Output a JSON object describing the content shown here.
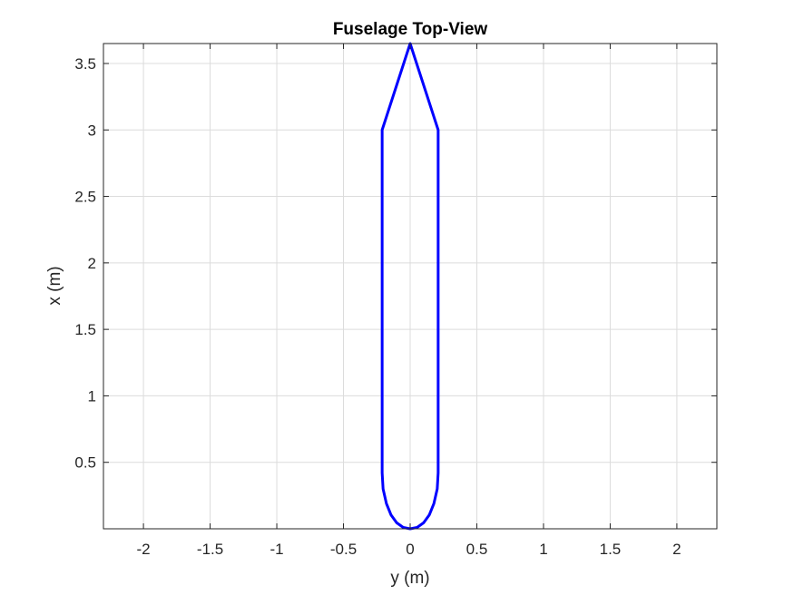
{
  "chart_data": {
    "type": "line",
    "title": "Fuselage Top-View",
    "xlabel": "y (m)",
    "ylabel": "x (m)",
    "xlim": [
      -2.3,
      2.3
    ],
    "ylim": [
      0,
      3.65
    ],
    "xticks": [
      -2,
      -1.5,
      -1,
      -0.5,
      0,
      0.5,
      1,
      1.5,
      2
    ],
    "xtick_labels": [
      "-2",
      "-1.5",
      "-1",
      "-0.5",
      "0",
      "0.5",
      "1",
      "1.5",
      "2"
    ],
    "yticks": [
      0.5,
      1,
      1.5,
      2,
      2.5,
      3,
      3.5
    ],
    "ytick_labels": [
      "0.5",
      "1",
      "1.5",
      "2",
      "2.5",
      "3",
      "3.5"
    ],
    "grid": true,
    "series": [
      {
        "color": "#0000ff",
        "x": [
          0,
          0.052,
          0.101,
          0.144,
          0.178,
          0.203,
          0.21,
          0.21,
          0.0,
          -0.21,
          -0.21,
          -0.203,
          -0.178,
          -0.144,
          -0.101,
          -0.052,
          0
        ],
        "y": [
          0,
          0.01,
          0.045,
          0.105,
          0.19,
          0.3,
          0.42,
          3.0,
          3.65,
          3.0,
          0.42,
          0.3,
          0.19,
          0.105,
          0.045,
          0.01,
          0
        ]
      }
    ]
  }
}
